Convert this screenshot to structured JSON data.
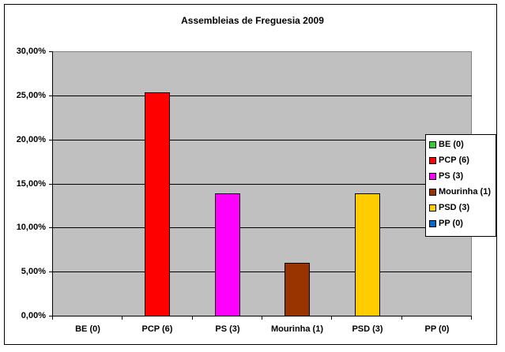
{
  "chart_data": {
    "type": "bar",
    "title": "Assembleias de Freguesia 2009",
    "xlabel": "",
    "ylabel": "",
    "ylim": [
      0,
      30
    ],
    "yticks": [
      "0,00%",
      "5,00%",
      "10,00%",
      "15,00%",
      "20,00%",
      "25,00%",
      "30,00%"
    ],
    "grid": true,
    "legend_position": "right",
    "categories": [
      "BE (0)",
      "PCP (6)",
      "PS (3)",
      "Mourinha (1)",
      "PSD (3)",
      "PP (0)"
    ],
    "values": [
      0,
      25.3,
      13.9,
      6.0,
      13.9,
      0
    ],
    "colors": [
      "#33cc33",
      "#ff0000",
      "#ff00ff",
      "#993300",
      "#ffcc00",
      "#0066cc"
    ],
    "series": [
      {
        "name": "BE (0)",
        "color": "#33cc33",
        "value": 0
      },
      {
        "name": "PCP (6)",
        "color": "#ff0000",
        "value": 25.3
      },
      {
        "name": "PS (3)",
        "color": "#ff00ff",
        "value": 13.9
      },
      {
        "name": "Mourinha (1)",
        "color": "#993300",
        "value": 6.0
      },
      {
        "name": "PSD (3)",
        "color": "#ffcc00",
        "value": 13.9
      },
      {
        "name": "PP (0)",
        "color": "#0066cc",
        "value": 0
      }
    ]
  },
  "colors": {
    "plot_background": "#c0c0c0",
    "frame": "#000000"
  }
}
